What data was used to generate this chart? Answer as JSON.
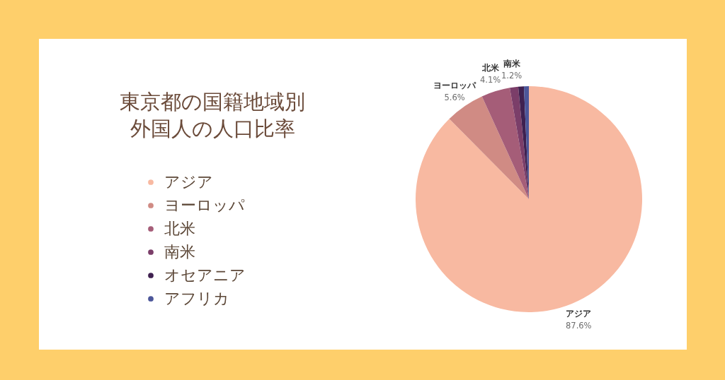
{
  "chart_data": {
    "type": "pie",
    "title": "東京都の国籍地域別",
    "subtitle": "外国人の人口比率",
    "categories": [
      "アジア",
      "ヨーロッパ",
      "北米",
      "南米",
      "オセアニア",
      "アフリカ"
    ],
    "values": [
      87.6,
      5.6,
      4.1,
      1.2,
      0.8,
      0.7
    ],
    "colors": [
      "#f8b9a1",
      "#d08b84",
      "#a55d78",
      "#7b3e69",
      "#3f2150",
      "#4c5699"
    ],
    "value_labels": [
      "87.6%",
      "5.6%",
      "4.1%",
      "1.2%",
      null,
      null
    ],
    "legend": "left"
  }
}
